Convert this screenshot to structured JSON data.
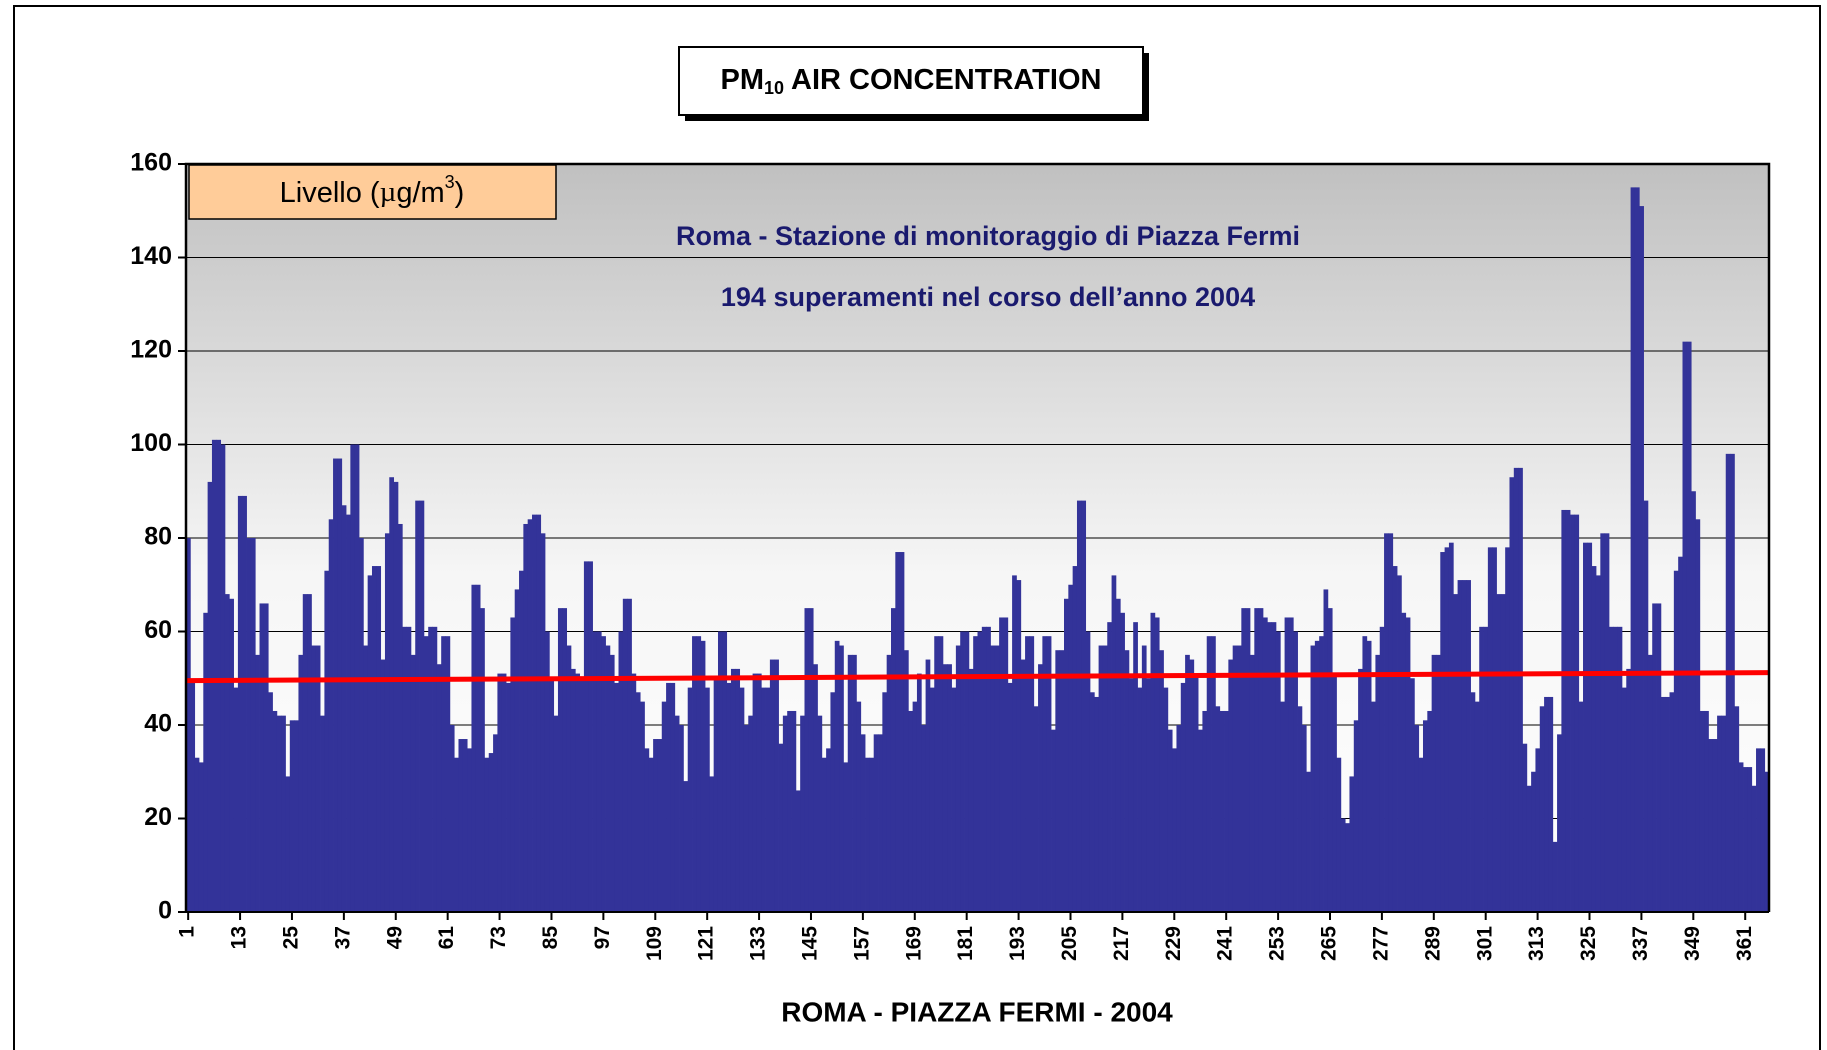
{
  "chart_data": {
    "type": "bar",
    "title": {
      "main": "PM",
      "sub": "10",
      "rest": "  AIR CONCENTRATION"
    },
    "y_unit": {
      "main": "Livello (",
      "mu": "µ",
      "unit": "g/m",
      "sup": "3",
      "close": ")"
    },
    "annotations": [
      "Roma - Stazione di monitoraggio di Piazza Fermi",
      "194 superamenti nel corso dell’anno 2004"
    ],
    "x_label": "ROMA - PIAZZA FERMI - 2004",
    "color": "#333399",
    "grid": true,
    "ylim": [
      0,
      160
    ],
    "yticks": [
      0,
      20,
      40,
      60,
      80,
      100,
      120,
      140,
      160
    ],
    "trend": {
      "start": 49.5,
      "end": 51.2,
      "color": "#ff0000"
    },
    "categories": [
      "1",
      null,
      null,
      null,
      null,
      null,
      null,
      null,
      null,
      null,
      null,
      null,
      "13",
      null,
      null,
      null,
      null,
      null,
      null,
      null,
      null,
      null,
      null,
      null,
      "25",
      null,
      null,
      null,
      null,
      null,
      null,
      null,
      null,
      null,
      null,
      null,
      "37",
      null,
      null,
      null,
      null,
      null,
      null,
      null,
      null,
      null,
      null,
      null,
      "49",
      null,
      null,
      null,
      null,
      null,
      null,
      null,
      null,
      null,
      null,
      null,
      "61",
      null,
      null,
      null,
      null,
      null,
      null,
      null,
      null,
      null,
      null,
      null,
      "73",
      null,
      null,
      null,
      null,
      null,
      null,
      null,
      null,
      null,
      null,
      null,
      "85",
      null,
      null,
      null,
      null,
      null,
      null,
      null,
      null,
      null,
      null,
      null,
      "97",
      null,
      null,
      null,
      null,
      null,
      null,
      null,
      null,
      null,
      null,
      null,
      "109",
      null,
      null,
      null,
      null,
      null,
      null,
      null,
      null,
      null,
      null,
      null,
      "121",
      null,
      null,
      null,
      null,
      null,
      null,
      null,
      null,
      null,
      null,
      null,
      "133",
      null,
      null,
      null,
      null,
      null,
      null,
      null,
      null,
      null,
      null,
      null,
      "145",
      null,
      null,
      null,
      null,
      null,
      null,
      null,
      null,
      null,
      null,
      null,
      "157",
      null,
      null,
      null,
      null,
      null,
      null,
      null,
      null,
      null,
      null,
      null,
      "169",
      null,
      null,
      null,
      null,
      null,
      null,
      null,
      null,
      null,
      null,
      null,
      "181",
      null,
      null,
      null,
      null,
      null,
      null,
      null,
      null,
      null,
      null,
      null,
      "193",
      null,
      null,
      null,
      null,
      null,
      null,
      null,
      null,
      null,
      null,
      null,
      "205",
      null,
      null,
      null,
      null,
      null,
      null,
      null,
      null,
      null,
      null,
      null,
      "217",
      null,
      null,
      null,
      null,
      null,
      null,
      null,
      null,
      null,
      null,
      null,
      "229",
      null,
      null,
      null,
      null,
      null,
      null,
      null,
      null,
      null,
      null,
      null,
      "241",
      null,
      null,
      null,
      null,
      null,
      null,
      null,
      null,
      null,
      null,
      null,
      "253",
      null,
      null,
      null,
      null,
      null,
      null,
      null,
      null,
      null,
      null,
      null,
      "265",
      null,
      null,
      null,
      null,
      null,
      null,
      null,
      null,
      null,
      null,
      null,
      "277",
      null,
      null,
      null,
      null,
      null,
      null,
      null,
      null,
      null,
      null,
      null,
      "289",
      null,
      null,
      null,
      null,
      null,
      null,
      null,
      null,
      null,
      null,
      null,
      "301",
      null,
      null,
      null,
      null,
      null,
      null,
      null,
      null,
      null,
      null,
      null,
      "313",
      null,
      null,
      null,
      null,
      null,
      null,
      null,
      null,
      null,
      null,
      null,
      "325",
      null,
      null,
      null,
      null,
      null,
      null,
      null,
      null,
      null,
      null,
      null,
      "337",
      null,
      null,
      null,
      null,
      null,
      null,
      null,
      null,
      null,
      null,
      null,
      "349",
      null,
      null,
      null,
      null,
      null,
      null,
      null,
      null,
      null,
      null,
      null,
      "361",
      null,
      null,
      null,
      null,
      null
    ],
    "values": [
      80,
      49,
      33,
      32,
      64,
      92,
      101,
      101,
      100,
      68,
      67,
      48,
      89,
      89,
      80,
      80,
      55,
      66,
      66,
      47,
      43,
      42,
      42,
      29,
      41,
      41,
      55,
      68,
      68,
      57,
      57,
      42,
      73,
      84,
      97,
      97,
      87,
      85,
      100,
      100,
      80,
      57,
      72,
      74,
      74,
      54,
      81,
      93,
      92,
      83,
      61,
      61,
      55,
      88,
      88,
      59,
      61,
      61,
      53,
      59,
      59,
      40,
      33,
      37,
      37,
      35,
      70,
      70,
      65,
      33,
      34,
      38,
      51,
      51,
      49,
      63,
      69,
      73,
      83,
      84,
      85,
      85,
      81,
      60,
      50,
      42,
      65,
      65,
      57,
      52,
      51,
      50,
      75,
      75,
      60,
      60,
      59,
      57,
      55,
      49,
      60,
      67,
      67,
      51,
      47,
      45,
      35,
      33,
      37,
      37,
      45,
      49,
      49,
      42,
      40,
      28,
      48,
      59,
      59,
      58,
      48,
      29,
      50,
      60,
      60,
      49,
      52,
      52,
      48,
      40,
      42,
      51,
      51,
      48,
      48,
      54,
      54,
      36,
      42,
      43,
      43,
      26,
      42,
      65,
      65,
      53,
      42,
      33,
      35,
      47,
      58,
      57,
      32,
      55,
      55,
      45,
      38,
      33,
      33,
      38,
      38,
      47,
      55,
      65,
      77,
      77,
      56,
      43,
      45,
      51,
      40,
      54,
      48,
      59,
      59,
      53,
      53,
      48,
      57,
      60,
      60,
      52,
      59,
      60,
      61,
      61,
      57,
      57,
      63,
      63,
      49,
      72,
      71,
      54,
      59,
      59,
      44,
      53,
      59,
      59,
      39,
      56,
      56,
      67,
      70,
      74,
      88,
      88,
      60,
      47,
      46,
      57,
      57,
      62,
      72,
      67,
      64,
      56,
      50,
      62,
      48,
      57,
      50,
      64,
      63,
      56,
      48,
      39,
      35,
      40,
      49,
      55,
      54,
      51,
      39,
      43,
      59,
      59,
      44,
      43,
      43,
      54,
      57,
      57,
      65,
      65,
      55,
      65,
      65,
      63,
      62,
      62,
      60,
      45,
      63,
      63,
      60,
      44,
      40,
      30,
      57,
      58,
      59,
      69,
      65,
      51,
      33,
      20,
      19,
      29,
      41,
      52,
      59,
      58,
      45,
      55,
      61,
      81,
      81,
      74,
      72,
      64,
      63,
      50,
      40,
      33,
      41,
      43,
      55,
      55,
      77,
      78,
      79,
      68,
      71,
      71,
      71,
      47,
      45,
      61,
      61,
      78,
      78,
      68,
      68,
      78,
      93,
      95,
      95,
      36,
      27,
      30,
      35,
      44,
      46,
      46,
      15,
      38,
      86,
      86,
      85,
      85,
      45,
      79,
      79,
      74,
      72,
      81,
      81,
      61,
      61,
      61,
      48,
      52,
      155,
      155,
      151,
      88,
      55,
      66,
      66,
      46,
      46,
      47,
      73,
      76,
      122,
      122,
      90,
      84,
      43,
      43,
      37,
      37,
      42,
      42,
      98,
      98,
      44,
      32,
      31,
      31,
      27,
      35,
      35,
      30
    ]
  }
}
